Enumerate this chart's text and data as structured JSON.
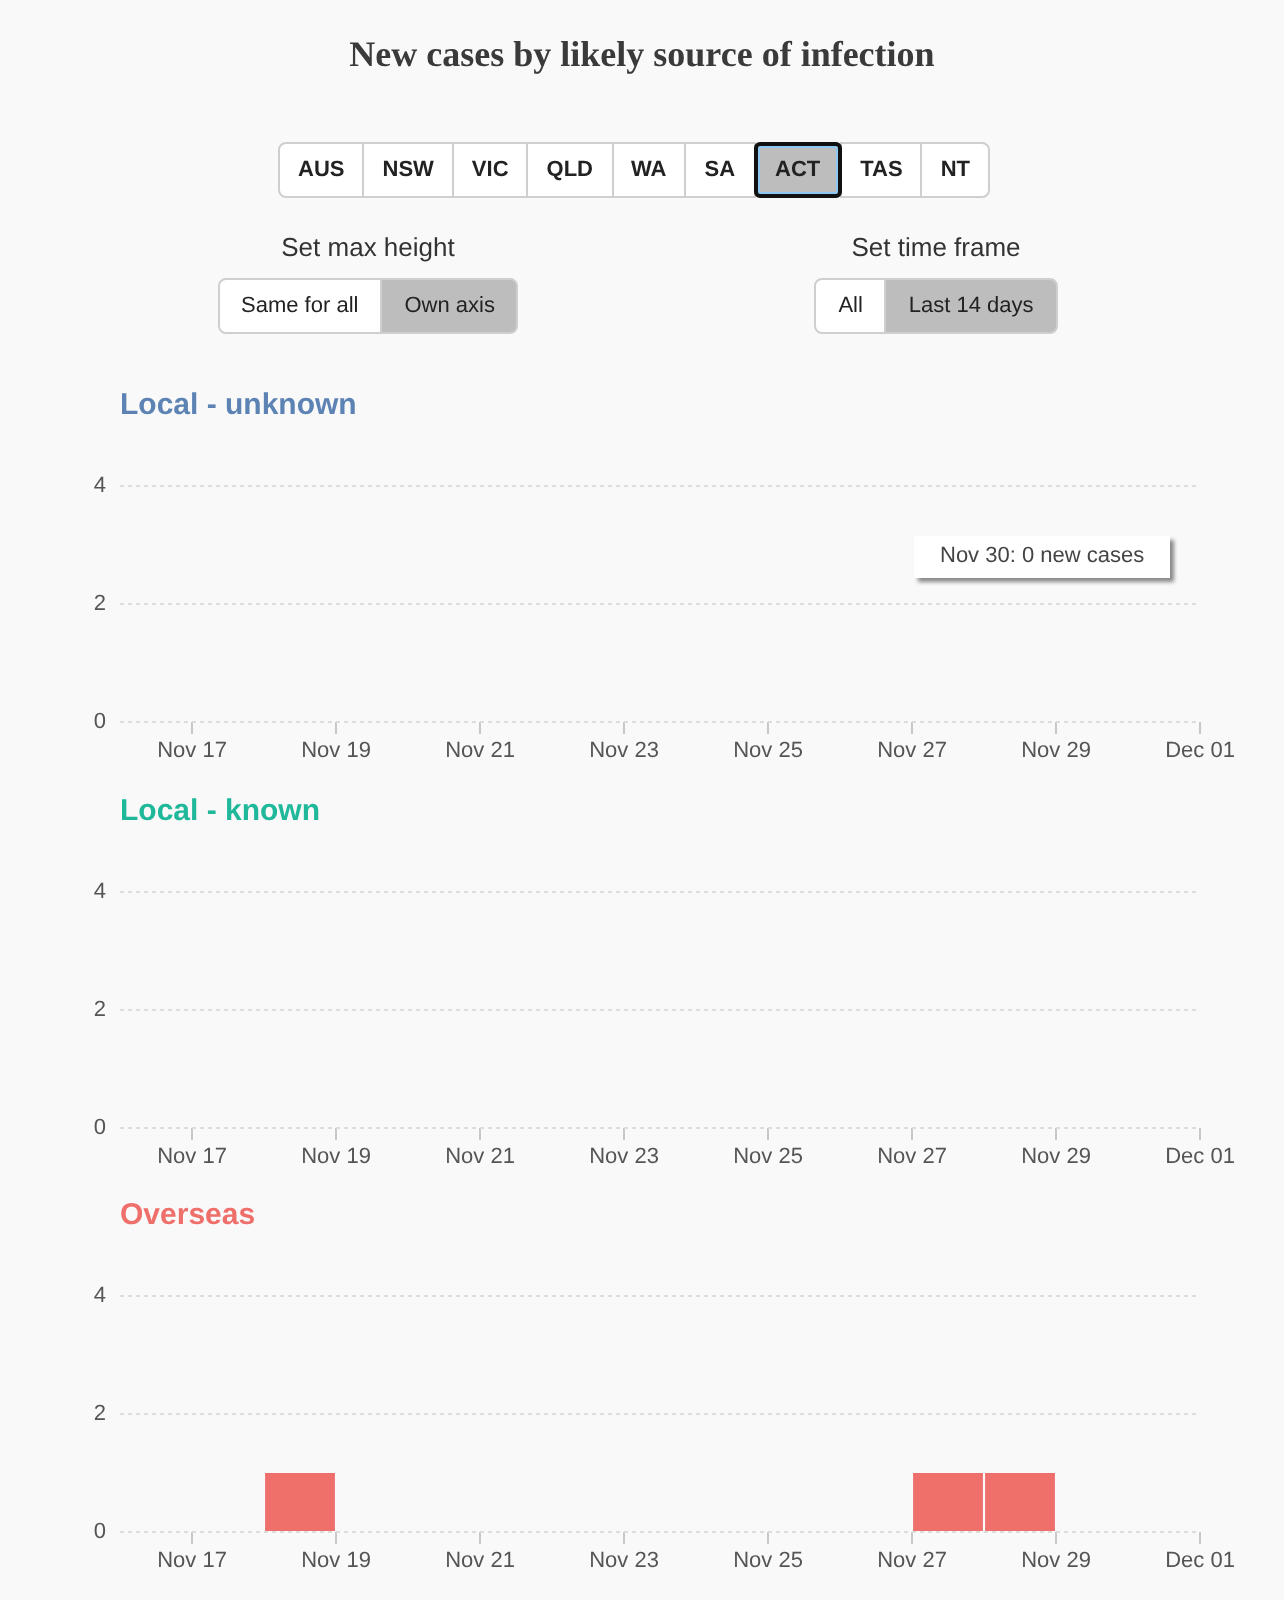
{
  "chart_data": [
    {
      "type": "other",
      "title": "New cases by likely source of infection",
      "annotations": [
        "AUS",
        "NSW",
        "VIC",
        "QLD",
        "WA",
        "SA",
        "ACT",
        "TAS",
        "NT",
        "Set max height",
        "Same for all",
        "Own axis",
        "Set time frame",
        "All",
        "Last 14 days"
      ]
    },
    {
      "type": "bar",
      "title": "Local - unknown",
      "x": [
        "--11-17T12:00",
        "--11-18T12:00",
        "--11-19T12:00",
        "--11-20T12:00",
        "--11-21T12:00",
        "--11-22T12:00",
        "--11-23T12:00",
        "--11-24T12:00",
        "--11-25T12:00",
        "--11-26T12:00",
        "--11-27T12:00",
        "--11-28T12:00",
        "--11-29T12:00",
        "--11-30T12:00"
      ],
      "values": [
        0,
        0,
        0,
        0,
        0,
        0,
        0,
        0,
        0,
        0,
        0,
        0,
        0,
        0
      ],
      "color": "#5d83b5",
      "xlim": [
        "--11-16",
        "--12-01"
      ],
      "xticks": [
        {
          "value": "--11-17",
          "label": "Nov 17"
        },
        {
          "value": "--11-19",
          "label": "Nov 19"
        },
        {
          "value": "--11-21",
          "label": "Nov 21"
        },
        {
          "value": "--11-23",
          "label": "Nov 23"
        },
        {
          "value": "--11-25",
          "label": "Nov 25"
        },
        {
          "value": "--11-27",
          "label": "Nov 27"
        },
        {
          "value": "--11-29",
          "label": "Nov 29"
        },
        {
          "value": "--12-01",
          "label": "Dec 01"
        }
      ],
      "ylim": [
        0,
        4
      ],
      "yticks": [
        0,
        2,
        4
      ],
      "grid": "y",
      "annotations": [
        "Nov 30: 0 new cases"
      ]
    },
    {
      "type": "bar",
      "title": "Local - known",
      "x": [
        "--11-17T12:00",
        "--11-18T12:00",
        "--11-19T12:00",
        "--11-20T12:00",
        "--11-21T12:00",
        "--11-22T12:00",
        "--11-23T12:00",
        "--11-24T12:00",
        "--11-25T12:00",
        "--11-26T12:00",
        "--11-27T12:00",
        "--11-28T12:00",
        "--11-29T12:00",
        "--11-30T12:00"
      ],
      "values": [
        0,
        0,
        0,
        0,
        0,
        0,
        0,
        0,
        0,
        0,
        0,
        0,
        0,
        0
      ],
      "color": "#1fb89b",
      "xlim": [
        "--11-16",
        "--12-01"
      ],
      "xticks": [
        {
          "value": "--11-17",
          "label": "Nov 17"
        },
        {
          "value": "--11-19",
          "label": "Nov 19"
        },
        {
          "value": "--11-21",
          "label": "Nov 21"
        },
        {
          "value": "--11-23",
          "label": "Nov 23"
        },
        {
          "value": "--11-25",
          "label": "Nov 25"
        },
        {
          "value": "--11-27",
          "label": "Nov 27"
        },
        {
          "value": "--11-29",
          "label": "Nov 29"
        },
        {
          "value": "--12-01",
          "label": "Dec 01"
        }
      ],
      "ylim": [
        0,
        4
      ],
      "yticks": [
        0,
        2,
        4
      ],
      "grid": "y"
    },
    {
      "type": "bar",
      "title": "Overseas",
      "x": [
        "--11-17T12:00",
        "--11-18T12:00",
        "--11-19T12:00",
        "--11-20T12:00",
        "--11-21T12:00",
        "--11-22T12:00",
        "--11-23T12:00",
        "--11-24T12:00",
        "--11-25T12:00",
        "--11-26T12:00",
        "--11-27T12:00",
        "--11-28T12:00",
        "--11-29T12:00",
        "--11-30T12:00"
      ],
      "values": [
        0,
        1,
        0,
        0,
        0,
        0,
        0,
        0,
        0,
        0,
        1,
        1,
        0,
        0
      ],
      "color": "#ef6f6b",
      "xlim": [
        "--11-16",
        "--12-01"
      ],
      "xticks": [
        {
          "value": "--11-17",
          "label": "Nov 17"
        },
        {
          "value": "--11-19",
          "label": "Nov 19"
        },
        {
          "value": "--11-21",
          "label": "Nov 21"
        },
        {
          "value": "--11-23",
          "label": "Nov 23"
        },
        {
          "value": "--11-25",
          "label": "Nov 25"
        },
        {
          "value": "--11-27",
          "label": "Nov 27"
        },
        {
          "value": "--11-29",
          "label": "Nov 29"
        },
        {
          "value": "--12-01",
          "label": "Dec 01"
        }
      ],
      "ylim": [
        0,
        4
      ],
      "yticks": [
        0,
        2,
        4
      ],
      "grid": "y"
    }
  ]
}
